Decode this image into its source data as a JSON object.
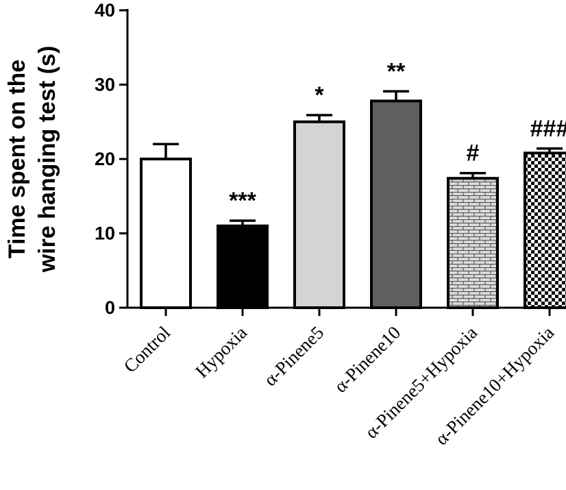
{
  "chart_data": {
    "type": "bar",
    "title": "",
    "ylabel_lines": [
      "Time spent on the",
      "wire hanging test (s)"
    ],
    "xlabel": "",
    "ylim": [
      0,
      40
    ],
    "yticks": [
      0,
      10,
      20,
      30,
      40
    ],
    "categories": [
      "Control",
      "Hypoxia",
      "α-Pinene5",
      "α-Pinene10",
      "α-Pinene5+Hypoxia",
      "α-Pinene10+Hypoxia"
    ],
    "values": [
      20,
      11,
      25,
      27.8,
      17.4,
      20.8
    ],
    "errors": [
      2.0,
      0.7,
      0.9,
      1.3,
      0.7,
      0.6
    ],
    "significance": [
      "",
      "***",
      "*",
      "**",
      "#",
      "###"
    ],
    "bar_fills": [
      "white",
      "black",
      "light-gray",
      "dark-gray",
      "brick-pattern",
      "checker-pattern"
    ],
    "colors": {
      "axis": "#000000",
      "light_gray": "#d4d4d4",
      "dark_gray": "#5f5f5f",
      "black": "#000000",
      "white": "#ffffff"
    },
    "grid": false,
    "legend": "none"
  }
}
